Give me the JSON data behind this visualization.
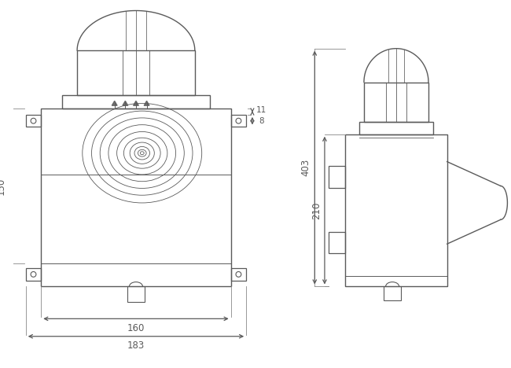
{
  "bg_color": "#ffffff",
  "line_color": "#5a5a5a",
  "dim_color": "#5a5a5a",
  "fig_width": 6.5,
  "fig_height": 4.68,
  "dpi": 100
}
